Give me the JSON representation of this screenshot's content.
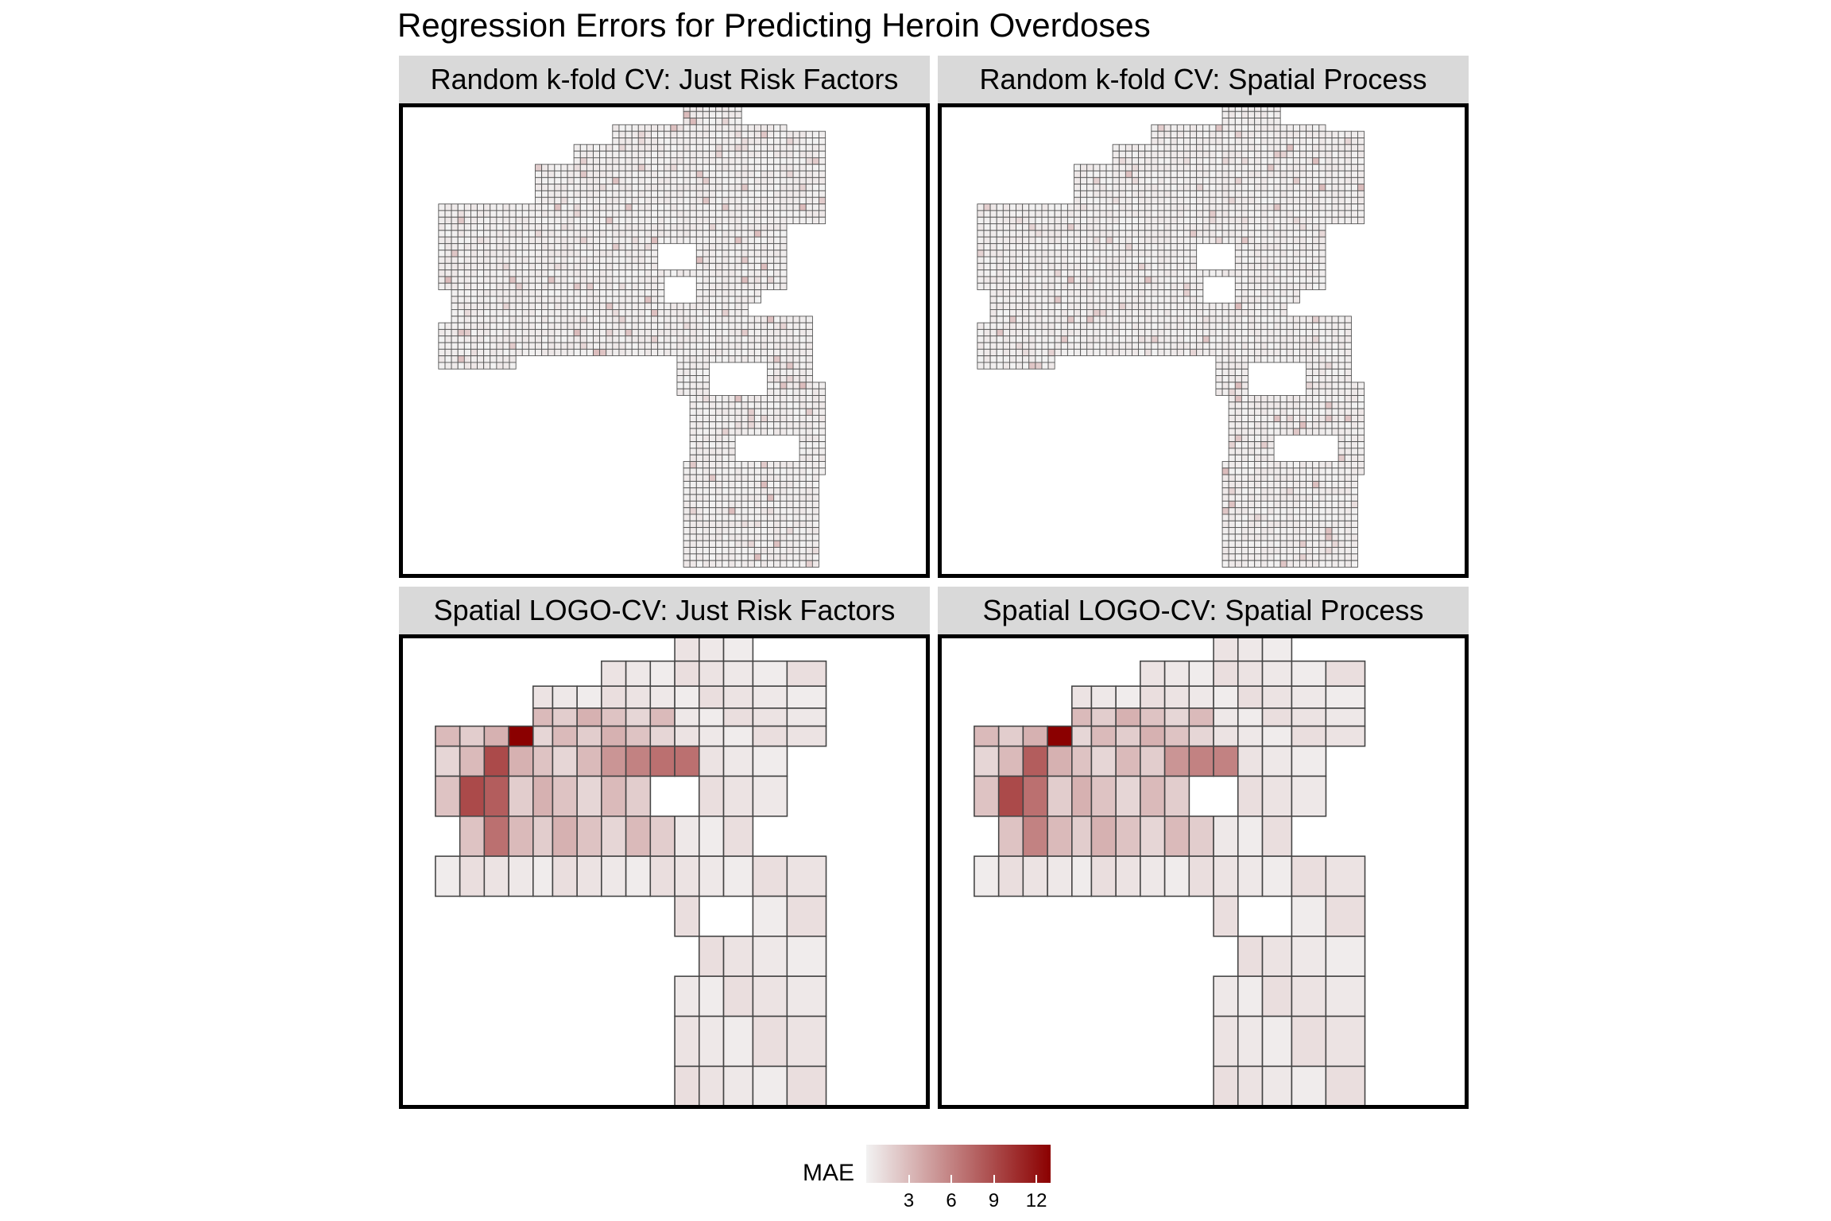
{
  "title": "Regression Errors for Predicting Heroin Overdoses",
  "panels": [
    {
      "label": "Random k-fold CV: Just Risk Factors",
      "mode": "fishnet"
    },
    {
      "label": "Random k-fold CV: Spatial Process",
      "mode": "fishnet"
    },
    {
      "label": "Spatial LOGO-CV: Just Risk Factors",
      "mode": "neighborhood"
    },
    {
      "label": "Spatial LOGO-CV: Spatial Process",
      "mode": "neighborhood"
    }
  ],
  "legend": {
    "title": "MAE",
    "ticks": [
      "3",
      "6",
      "9",
      "12"
    ],
    "tick_values": [
      3,
      6,
      9,
      12
    ],
    "range": [
      0,
      13
    ],
    "color_low": "#f2f2f2",
    "color_high": "#8b0000"
  },
  "colors": {
    "strip_bg": "#d9d9d9",
    "panel_border": "#000000",
    "polygon_border": "#444444",
    "low": "#f2f2f2",
    "high": "#8b0000"
  },
  "neighborhood_mae": {
    "risk_factors": {
      "hot_cells": [
        {
          "row": 2,
          "col": 3,
          "value": 13
        },
        {
          "row": 3,
          "col": 2,
          "value": 9
        },
        {
          "row": 4,
          "col": 1,
          "value": 9
        },
        {
          "row": 4,
          "col": 2,
          "value": 8
        },
        {
          "row": 5,
          "col": 2,
          "value": 7
        },
        {
          "row": 3,
          "col": 9,
          "value": 7
        },
        {
          "row": 3,
          "col": 10,
          "value": 7
        },
        {
          "row": 3,
          "col": 8,
          "value": 6
        },
        {
          "row": 3,
          "col": 7,
          "value": 5
        }
      ]
    },
    "spatial_process": {
      "hot_cells": [
        {
          "row": 2,
          "col": 3,
          "value": 13
        },
        {
          "row": 3,
          "col": 2,
          "value": 8
        },
        {
          "row": 4,
          "col": 1,
          "value": 9
        },
        {
          "row": 4,
          "col": 2,
          "value": 7
        },
        {
          "row": 5,
          "col": 2,
          "value": 6
        },
        {
          "row": 3,
          "col": 9,
          "value": 6
        },
        {
          "row": 3,
          "col": 10,
          "value": 6
        },
        {
          "row": 3,
          "col": 8,
          "value": 5
        }
      ]
    }
  }
}
